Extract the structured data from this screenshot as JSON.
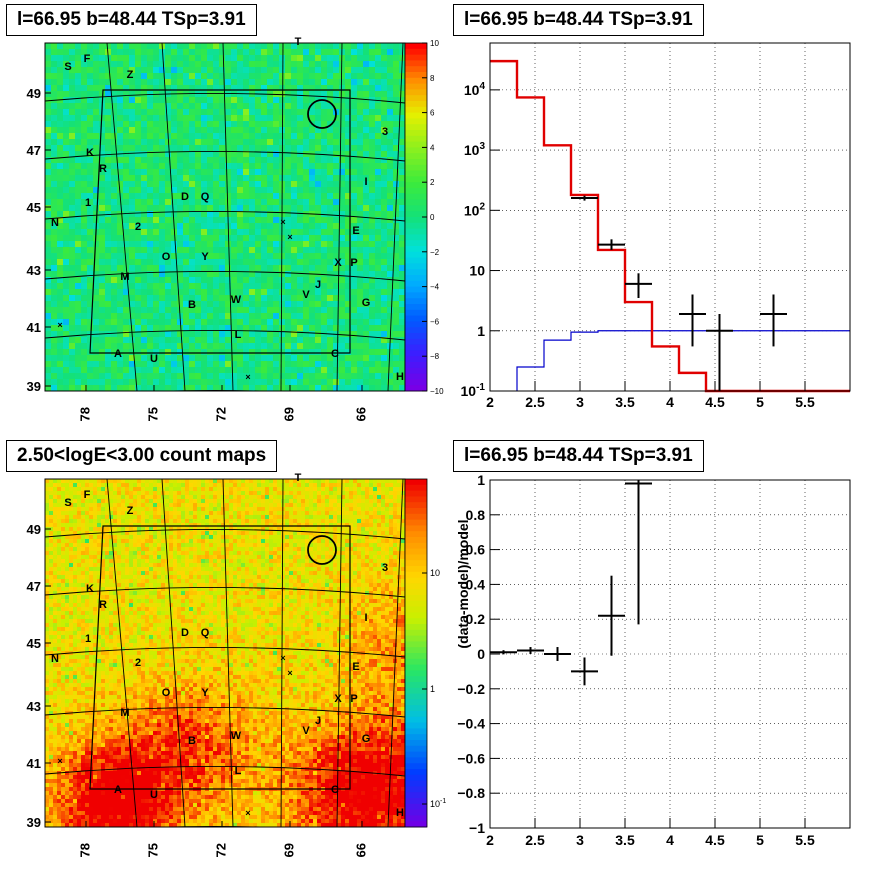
{
  "titles": {
    "top_left": "l=66.95 b=48.44 TSp=3.91",
    "top_right": "l=66.95 b=48.44 TSp=3.91",
    "bottom_left": "2.50<logE<3.00 count maps",
    "bottom_right": "l=66.95 b=48.44 TSp=3.91"
  },
  "colors": {
    "model_line": "#e00000",
    "background_line": "#0000cc",
    "data_points": "#000000",
    "grid": "#000000"
  },
  "chart_data": [
    {
      "id": "ts-map",
      "type": "heatmap",
      "title": "l=66.95 b=48.44 TSp=3.91",
      "x_ticks": [
        "78",
        "75",
        "72",
        "69",
        "66"
      ],
      "y_ticks": [
        "49",
        "47",
        "45",
        "43",
        "41",
        "39"
      ],
      "colorbar_ticks": [
        "10",
        "8",
        "6",
        "4",
        "2",
        "0",
        "−2",
        "−4",
        "−6",
        "−8",
        "−10"
      ],
      "colorbar_range": [
        -10,
        10
      ],
      "source_labels": [
        "S",
        "F",
        "Z",
        "T",
        "3",
        "K",
        "R",
        "I",
        "1",
        "D",
        "Q",
        "N",
        "2",
        "E",
        "O",
        "Y",
        "X",
        "P",
        "M",
        "J",
        "V",
        "B",
        "W",
        "G",
        "L",
        "A",
        "U",
        "C",
        "H"
      ]
    },
    {
      "id": "spectrum",
      "type": "line",
      "title": "l=66.95 b=48.44 TSp=3.91",
      "x_ticks": [
        "2",
        "2.5",
        "3",
        "3.5",
        "4",
        "4.5",
        "5",
        "5.5"
      ],
      "xlim": [
        2,
        6
      ],
      "y_ticks": [
        "10^4",
        "10^3",
        "10^2",
        "10",
        "1",
        "10^-1"
      ],
      "y_scale": "log",
      "ylim": [
        0.1,
        60000
      ],
      "grid": true,
      "model_steps": [
        {
          "x0": 2.0,
          "x1": 2.3,
          "y": 30000
        },
        {
          "x0": 2.3,
          "x1": 2.6,
          "y": 7500
        },
        {
          "x0": 2.6,
          "x1": 2.9,
          "y": 1200
        },
        {
          "x0": 2.9,
          "x1": 3.2,
          "y": 180
        },
        {
          "x0": 3.2,
          "x1": 3.5,
          "y": 22
        },
        {
          "x0": 3.5,
          "x1": 3.8,
          "y": 3
        },
        {
          "x0": 3.8,
          "x1": 4.1,
          "y": 0.55
        },
        {
          "x0": 4.1,
          "x1": 4.4,
          "y": 0.2
        },
        {
          "x0": 4.4,
          "x1": 6.0,
          "y": 0.1
        }
      ],
      "background_steps": [
        {
          "x0": 2.3,
          "x1": 2.6,
          "y": 0.25
        },
        {
          "x0": 2.6,
          "x1": 2.9,
          "y": 0.7
        },
        {
          "x0": 2.9,
          "x1": 3.2,
          "y": 0.95
        },
        {
          "x0": 3.2,
          "x1": 6.0,
          "y": 1.0
        }
      ],
      "points": [
        {
          "x": 3.05,
          "y": 160,
          "xerr": 0.15,
          "ylo": 145,
          "yhi": 175
        },
        {
          "x": 3.35,
          "y": 27,
          "xerr": 0.15,
          "ylo": 22,
          "yhi": 33
        },
        {
          "x": 3.65,
          "y": 6,
          "xerr": 0.15,
          "ylo": 3.5,
          "yhi": 9
        },
        {
          "x": 4.25,
          "y": 1.9,
          "xerr": 0.15,
          "ylo": 0.55,
          "yhi": 4
        },
        {
          "x": 4.55,
          "y": 1.0,
          "xerr": 0.15,
          "ylo": 0.1,
          "yhi": 1.9
        },
        {
          "x": 5.15,
          "y": 1.9,
          "xerr": 0.15,
          "ylo": 0.55,
          "yhi": 4
        }
      ]
    },
    {
      "id": "count-map",
      "type": "heatmap",
      "title": "2.50<logE<3.00 count maps",
      "x_ticks": [
        "78",
        "75",
        "72",
        "69",
        "66"
      ],
      "y_ticks": [
        "49",
        "47",
        "45",
        "43",
        "41",
        "39"
      ],
      "colorbar_ticks": [
        "10",
        "1",
        "10^-1"
      ],
      "colorbar_scale": "log",
      "source_labels": [
        "S",
        "F",
        "Z",
        "T",
        "3",
        "K",
        "R",
        "I",
        "1",
        "D",
        "Q",
        "N",
        "2",
        "E",
        "O",
        "Y",
        "X",
        "P",
        "M",
        "J",
        "V",
        "B",
        "W",
        "G",
        "L",
        "A",
        "U",
        "C",
        "H"
      ]
    },
    {
      "id": "residuals",
      "type": "scatter",
      "title": "l=66.95 b=48.44 TSp=3.91",
      "ylabel": "(data-model)/model",
      "x_ticks": [
        "2",
        "2.5",
        "3",
        "3.5",
        "4",
        "4.5",
        "5",
        "5.5"
      ],
      "xlim": [
        2,
        6
      ],
      "y_ticks": [
        "1",
        "0.8",
        "0.6",
        "0.4",
        "0.2",
        "0",
        "−0.2",
        "−0.4",
        "−0.6",
        "−0.8",
        "−1"
      ],
      "ylim": [
        -1,
        1
      ],
      "grid": true,
      "points": [
        {
          "x": 2.15,
          "y": 0.01,
          "xerr": 0.15,
          "yerr": 0.012
        },
        {
          "x": 2.45,
          "y": 0.02,
          "xerr": 0.15,
          "yerr": 0.02
        },
        {
          "x": 2.75,
          "y": 0.0,
          "xerr": 0.15,
          "yerr": 0.04
        },
        {
          "x": 3.05,
          "y": -0.1,
          "xerr": 0.15,
          "yerr": 0.08
        },
        {
          "x": 3.35,
          "y": 0.22,
          "xerr": 0.15,
          "yerr": 0.23
        },
        {
          "x": 3.65,
          "y": 0.98,
          "xerr": 0.15,
          "yerr": 0.81
        }
      ]
    }
  ]
}
